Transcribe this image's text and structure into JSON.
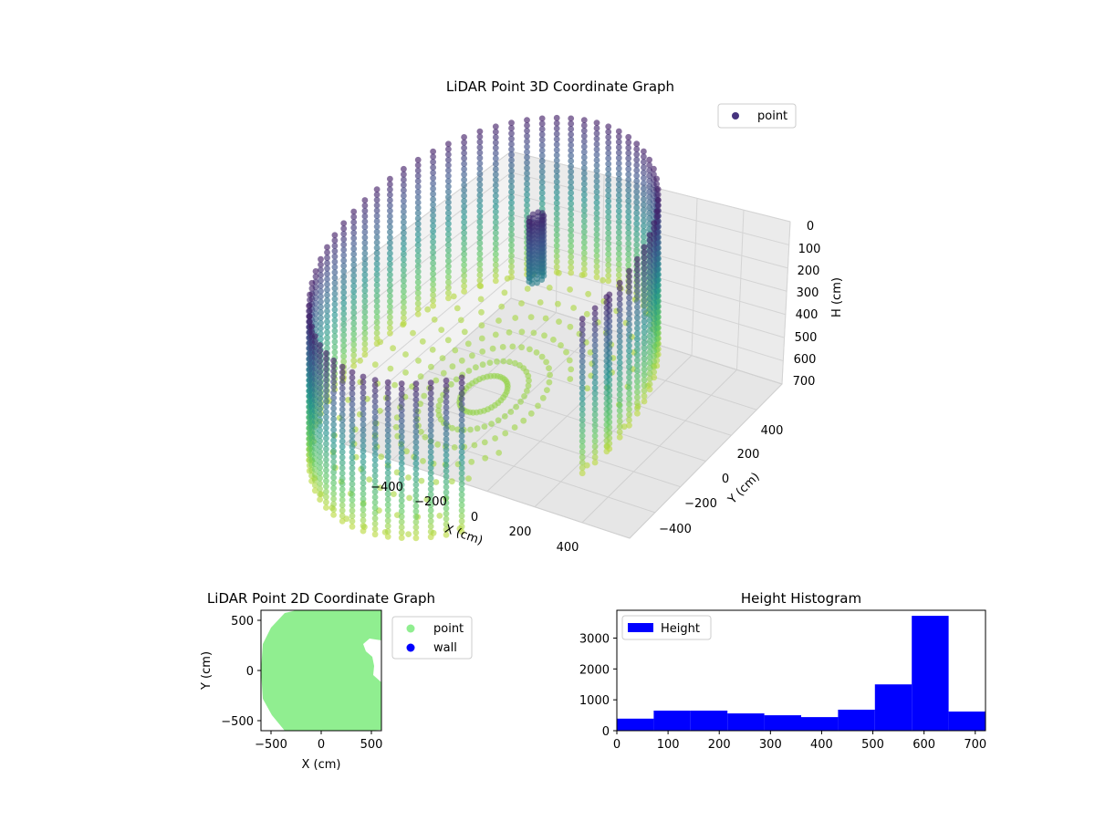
{
  "chart_data": [
    {
      "type": "scatter",
      "projection": "3d",
      "title": "LiDAR Point 3D Coordinate Graph",
      "xlabel": "X (cm)",
      "ylabel": "Y (cm)",
      "zlabel": "H (cm)",
      "x_ticks": [
        "−400",
        "−200",
        "0",
        "200",
        "400"
      ],
      "y_ticks": [
        "−400",
        "−200",
        "0",
        "200",
        "400"
      ],
      "z_ticks": [
        "0",
        "100",
        "200",
        "300",
        "400",
        "500",
        "600",
        "700"
      ],
      "zlim": [
        0,
        700
      ],
      "z_inverted": true,
      "colormap": "viridis",
      "legend": {
        "entries": [
          "point"
        ],
        "placement": "upper-right",
        "color": "#46337e"
      },
      "grid": true,
      "structure": {
        "wall_radius_cm": 580,
        "wall_height_cm": [
          0,
          700
        ],
        "object_near_center": {
          "x": 50,
          "y": 200,
          "h_range": [
            30,
            300
          ]
        },
        "gap_region": {
          "x_range": [
            250,
            560
          ],
          "y_range": [
            -450,
            150
          ]
        }
      }
    },
    {
      "type": "scatter",
      "title": "LiDAR Point 2D Coordinate Graph",
      "xlabel": "X (cm)",
      "ylabel": "Y (cm)",
      "x_ticks": [
        "−500",
        "0",
        "500"
      ],
      "y_ticks": [
        "−500",
        "0",
        "500"
      ],
      "xlim": [
        -600,
        600
      ],
      "ylim": [
        -600,
        600
      ],
      "series": [
        {
          "name": "point",
          "color": "#90ee90"
        },
        {
          "name": "wall",
          "color": "#0000ff"
        }
      ],
      "legend": {
        "placement": "outside-right"
      }
    },
    {
      "type": "bar",
      "subtype": "histogram",
      "title": "Height Histogram",
      "bin_edges": [
        0,
        72,
        144,
        216,
        288,
        360,
        432,
        504,
        576,
        648,
        720
      ],
      "values": [
        390,
        650,
        650,
        560,
        500,
        440,
        680,
        1500,
        3720,
        620
      ],
      "x_ticks": [
        "0",
        "100",
        "200",
        "300",
        "400",
        "500",
        "600",
        "700"
      ],
      "y_ticks": [
        "0",
        "1000",
        "2000",
        "3000"
      ],
      "xlim": [
        0,
        720
      ],
      "ylim": [
        0,
        3900
      ],
      "color": "#0000ff",
      "legend": {
        "entries": [
          "Height"
        ],
        "placement": "upper-left"
      }
    }
  ]
}
